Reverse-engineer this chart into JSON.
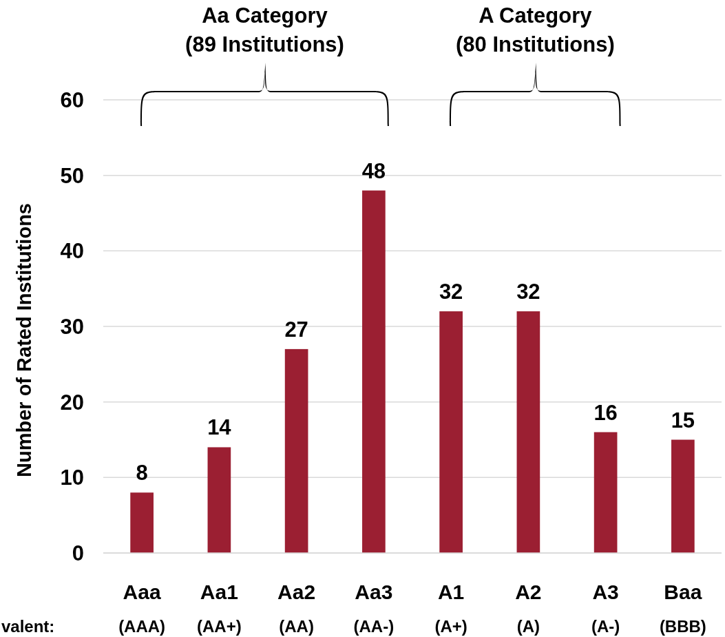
{
  "chart_data": {
    "type": "bar",
    "ylabel": "Number of Rated Institutions",
    "categories": [
      "Aaa\n(AAA)",
      "Aa1\n(AA+)",
      "Aa2\n(AA)",
      "Aa3\n(AA-)",
      "A1\n(A+)",
      "A2\n(A)",
      "A3\n(A-)",
      "Baa\n(BBB)"
    ],
    "values": [
      8,
      14,
      27,
      48,
      32,
      32,
      16,
      15
    ],
    "color": "#9b1f32",
    "ylim": [
      0,
      60
    ],
    "yticks": [
      0,
      10,
      20,
      30,
      40,
      50,
      60
    ],
    "grid": "y",
    "data_labels": true,
    "annotations": [
      "Aa Category\n(89 Institutions)",
      "A Category\n(80 Institutions)",
      "valent:"
    ]
  }
}
